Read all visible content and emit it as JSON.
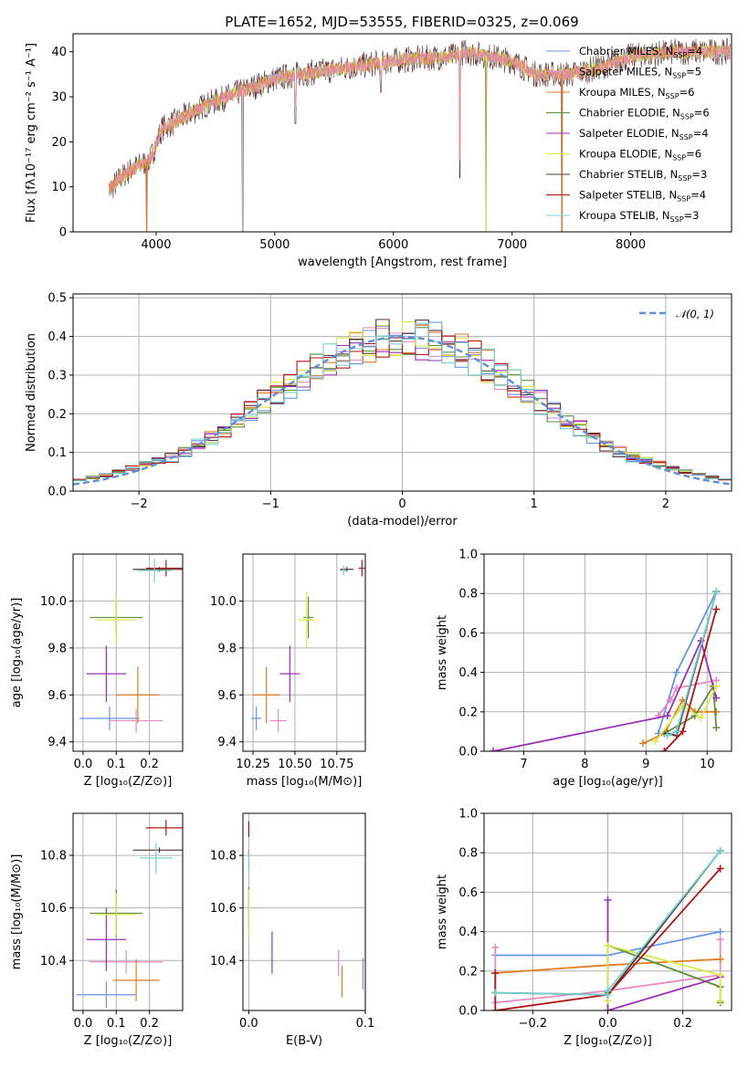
{
  "title": "PLATE=1652, MJD=53555, FIBERID=0325, z=0.069",
  "colors": {
    "chabrier_miles": "#6495ed",
    "salpeter_miles": "#e78ac3",
    "kroupa_miles": "#e07b1f",
    "chabrier_elodie": "#5f8f3c",
    "salpeter_elodie": "#9b30b4",
    "kroupa_elodie": "#d9e84a",
    "chabrier_stelib": "#5a3030",
    "salpeter_stelib": "#b01515",
    "kroupa_stelib": "#70d0d0",
    "normal": "#5b8fd8"
  },
  "chart_data": [
    {
      "id": "spectrum",
      "type": "line",
      "xlabel": "wavelength [Angstrom, rest frame]",
      "ylabel": "Flux [fλ10⁻¹⁷ erg cm⁻² s⁻¹ A⁻¹]",
      "xlim": [
        3300,
        8850
      ],
      "ylim": [
        0,
        44
      ],
      "xticks": [
        "4000",
        "5000",
        "6000",
        "7000",
        "8000"
      ],
      "yticks": [
        "0",
        "10",
        "20",
        "30",
        "40"
      ],
      "legend_position": "upper right",
      "legend": [
        {
          "name": "Chabrier MILES, N",
          "sub": "SSP",
          "eq": "=4",
          "color": "chabrier_miles"
        },
        {
          "name": "Salpeter MILES, N",
          "sub": "SSP",
          "eq": "=5",
          "color": "salpeter_miles"
        },
        {
          "name": "Kroupa MILES, N",
          "sub": "SSP",
          "eq": "=6",
          "color": "kroupa_miles"
        },
        {
          "name": "Chabrier ELODIE, N",
          "sub": "SSP",
          "eq": "=6",
          "color": "chabrier_elodie"
        },
        {
          "name": "Salpeter ELODIE, N",
          "sub": "SSP",
          "eq": "=4",
          "color": "salpeter_elodie"
        },
        {
          "name": "Kroupa ELODIE, N",
          "sub": "SSP",
          "eq": "=6",
          "color": "kroupa_elodie"
        },
        {
          "name": "Chabrier STELIB, N",
          "sub": "SSP",
          "eq": "=3",
          "color": "chabrier_stelib"
        },
        {
          "name": "Salpeter STELIB, N",
          "sub": "SSP",
          "eq": "=4",
          "color": "salpeter_stelib"
        },
        {
          "name": "Kroupa STELIB, N",
          "sub": "SSP",
          "eq": "=3",
          "color": "kroupa_stelib"
        }
      ],
      "continuum": [
        [
          3600,
          9
        ],
        [
          3700,
          12
        ],
        [
          3800,
          14
        ],
        [
          3950,
          16
        ],
        [
          4050,
          23
        ],
        [
          4200,
          25
        ],
        [
          4400,
          28
        ],
        [
          4600,
          30
        ],
        [
          4800,
          32
        ],
        [
          5000,
          34
        ],
        [
          5200,
          35
        ],
        [
          5500,
          36
        ],
        [
          6000,
          38
        ],
        [
          6500,
          39
        ],
        [
          6600,
          40
        ],
        [
          7000,
          38
        ],
        [
          7200,
          35
        ],
        [
          7500,
          35
        ],
        [
          7800,
          37
        ],
        [
          8000,
          39
        ],
        [
          8400,
          40
        ],
        [
          8800,
          40
        ]
      ],
      "dips": [
        [
          3920,
          0
        ],
        [
          4730,
          0
        ],
        [
          5175,
          24
        ],
        [
          5895,
          31
        ],
        [
          6560,
          12
        ],
        [
          6780,
          0
        ],
        [
          7420,
          0
        ]
      ]
    },
    {
      "id": "residuals",
      "type": "line",
      "xlabel": "(data-model)/error",
      "ylabel": "Normed distribution",
      "xlim": [
        -2.5,
        2.5
      ],
      "ylim": [
        0,
        0.51
      ],
      "xticks": [
        "−2",
        "−1",
        "0",
        "1",
        "2"
      ],
      "yticks": [
        "0.0",
        "0.1",
        "0.2",
        "0.3",
        "0.4",
        "0.5"
      ],
      "legend": {
        "name": "𝒩(0, 1)",
        "color": "normal"
      },
      "series_shape": "histograms of the nine fits, close to a standard normal curve"
    },
    {
      "id": "age_vs_Z",
      "type": "scatter",
      "xlabel": "Z [log₁₀(Z/Z⊙)]",
      "ylabel": "age  [log₁₀(age/yr)]",
      "xlim": [
        -0.03,
        0.3
      ],
      "ylim": [
        9.36,
        10.2
      ],
      "xticks": [
        "0.0",
        "0.1",
        "0.2"
      ],
      "yticks": [
        "9.4",
        "9.6",
        "9.8",
        "10.0"
      ],
      "points": [
        {
          "s": "chabrier_miles",
          "x": 0.08,
          "xe": 0.09,
          "y": 9.5,
          "ye": 0.05
        },
        {
          "s": "salpeter_miles",
          "x": 0.16,
          "xe": 0.08,
          "y": 9.49,
          "ye": 0.05
        },
        {
          "s": "kroupa_miles",
          "x": 0.165,
          "xe": 0.065,
          "y": 9.6,
          "ye": 0.12
        },
        {
          "s": "chabrier_elodie",
          "x": 0.1,
          "xe": 0.08,
          "y": 9.93,
          "ye": 0.07
        },
        {
          "s": "salpeter_elodie",
          "x": 0.07,
          "xe": 0.06,
          "y": 9.69,
          "ye": 0.12
        },
        {
          "s": "kroupa_elodie",
          "x": 0.1,
          "xe": 0.06,
          "y": 9.92,
          "ye": 0.1
        },
        {
          "s": "chabrier_stelib",
          "x": 0.23,
          "xe": 0.08,
          "y": 10.135,
          "ye": 0.01
        },
        {
          "s": "salpeter_stelib",
          "x": 0.25,
          "xe": 0.06,
          "y": 10.14,
          "ye": 0.035
        },
        {
          "s": "kroupa_stelib",
          "x": 0.215,
          "xe": 0.05,
          "y": 10.13,
          "ye": 0.05
        }
      ]
    },
    {
      "id": "age_vs_mass",
      "type": "scatter",
      "xlabel": "mass [log₁₀(M/M⊙)]",
      "ylabel": "",
      "xlim": [
        10.19,
        10.92
      ],
      "ylim": [
        9.36,
        10.2
      ],
      "xticks": [
        "10.25",
        "10.50",
        "10.75"
      ],
      "yticks": [
        "9.4",
        "9.6",
        "9.8",
        "10.0"
      ],
      "points": [
        {
          "s": "chabrier_miles",
          "x": 10.27,
          "xe": 0.03,
          "y": 9.5,
          "ye": 0.05
        },
        {
          "s": "salpeter_miles",
          "x": 10.4,
          "xe": 0.05,
          "y": 9.49,
          "ye": 0.05
        },
        {
          "s": "kroupa_miles",
          "x": 10.33,
          "xe": 0.08,
          "y": 9.6,
          "ye": 0.12
        },
        {
          "s": "chabrier_elodie",
          "x": 10.58,
          "xe": 0.03,
          "y": 9.93,
          "ye": 0.09
        },
        {
          "s": "salpeter_elodie",
          "x": 10.47,
          "xe": 0.06,
          "y": 9.69,
          "ye": 0.12
        },
        {
          "s": "kroupa_elodie",
          "x": 10.57,
          "xe": 0.05,
          "y": 9.92,
          "ye": 0.12
        },
        {
          "s": "chabrier_stelib",
          "x": 10.81,
          "xe": 0.04,
          "y": 10.135,
          "ye": 0.01
        },
        {
          "s": "salpeter_stelib",
          "x": 10.9,
          "xe": 0.02,
          "y": 10.14,
          "ye": 0.035
        },
        {
          "s": "kroupa_stelib",
          "x": 10.79,
          "xe": 0.02,
          "y": 10.13,
          "ye": 0.02
        }
      ]
    },
    {
      "id": "weight_vs_age",
      "type": "line",
      "xlabel": "age  [log₁₀(age/yr)]",
      "ylabel": "mass weight",
      "xlim": [
        6.35,
        10.4
      ],
      "ylim": [
        0,
        1.0
      ],
      "xticks": [
        "7",
        "8",
        "9",
        "10"
      ],
      "yticks": [
        "0.0",
        "0.2",
        "0.4",
        "0.6",
        "0.8",
        "1.0"
      ],
      "series": [
        {
          "s": "chabrier_miles",
          "x": [
            9.2,
            9.5,
            10.15
          ],
          "y": [
            0.09,
            0.4,
            0.81
          ]
        },
        {
          "s": "salpeter_miles",
          "x": [
            9.2,
            9.4,
            9.5,
            10.15
          ],
          "y": [
            0.18,
            0.26,
            0.32,
            0.36
          ]
        },
        {
          "s": "kroupa_miles",
          "x": [
            8.95,
            9.3,
            9.6,
            9.8,
            10.15
          ],
          "y": [
            0.04,
            0.09,
            0.26,
            0.2,
            0.2
          ]
        },
        {
          "s": "chabrier_elodie",
          "x": [
            9.3,
            9.8,
            10.1,
            10.15
          ],
          "y": [
            0.09,
            0.18,
            0.33,
            0.12
          ]
        },
        {
          "s": "salpeter_elodie",
          "x": [
            6.5,
            9.35,
            9.9,
            10.15
          ],
          "y": [
            0.0,
            0.18,
            0.56,
            0.27
          ]
        },
        {
          "s": "kroupa_elodie",
          "x": [
            9.15,
            9.6,
            9.9,
            10.15
          ],
          "y": [
            0.05,
            0.23,
            0.17,
            0.33
          ]
        },
        {
          "s": "chabrier_stelib",
          "x": [
            9.35,
            9.5,
            10.15
          ],
          "y": [
            0.09,
            0.08,
            0.81
          ]
        },
        {
          "s": "salpeter_stelib",
          "x": [
            9.3,
            9.6,
            10.15
          ],
          "y": [
            0.0,
            0.1,
            0.72
          ]
        },
        {
          "s": "kroupa_stelib",
          "x": [
            9.35,
            9.5,
            10.15
          ],
          "y": [
            0.08,
            0.1,
            0.81
          ]
        }
      ]
    },
    {
      "id": "mass_vs_Z",
      "type": "scatter",
      "xlabel": "Z [log₁₀(Z/Z⊙)]",
      "ylabel": "mass [log₁₀(M/M⊙)]",
      "xlim": [
        -0.03,
        0.3
      ],
      "ylim": [
        10.21,
        10.96
      ],
      "xticks": [
        "0.0",
        "0.1",
        "0.2"
      ],
      "yticks": [
        "10.4",
        "10.6",
        "10.8"
      ],
      "points": [
        {
          "s": "chabrier_miles",
          "x": 0.07,
          "xe": 0.09,
          "y": 10.27,
          "ye": 0.05
        },
        {
          "s": "salpeter_miles",
          "x": 0.13,
          "xe": 0.11,
          "y": 10.395,
          "ye": 0.045
        },
        {
          "s": "kroupa_miles",
          "x": 0.16,
          "xe": 0.07,
          "y": 10.325,
          "ye": 0.08
        },
        {
          "s": "chabrier_elodie",
          "x": 0.1,
          "xe": 0.08,
          "y": 10.58,
          "ye": 0.09
        },
        {
          "s": "salpeter_elodie",
          "x": 0.07,
          "xe": 0.06,
          "y": 10.48,
          "ye": 0.12
        },
        {
          "s": "kroupa_elodie",
          "x": 0.1,
          "xe": 0.06,
          "y": 10.575,
          "ye": 0.08
        },
        {
          "s": "chabrier_stelib",
          "x": 0.23,
          "xe": 0.08,
          "y": 10.82,
          "ye": 0.01
        },
        {
          "s": "salpeter_stelib",
          "x": 0.25,
          "xe": 0.06,
          "y": 10.905,
          "ye": 0.03
        },
        {
          "s": "kroupa_stelib",
          "x": 0.22,
          "xe": 0.05,
          "y": 10.79,
          "ye": 0.06
        }
      ]
    },
    {
      "id": "mass_vs_ebv",
      "type": "scatter",
      "xlabel": "E(B-V)",
      "ylabel": "",
      "xlim": [
        -0.005,
        0.1
      ],
      "ylim": [
        10.21,
        10.96
      ],
      "xticks": [
        "0.0",
        "0.1"
      ],
      "yticks": [
        "10.4",
        "10.6",
        "10.8"
      ],
      "points": [
        {
          "s": "chabrier_miles",
          "x": 0.098,
          "y": 10.35,
          "ye": 0.06
        },
        {
          "s": "salpeter_miles",
          "x": 0.077,
          "y": 10.39,
          "ye": 0.05
        },
        {
          "s": "kroupa_miles",
          "x": 0.08,
          "y": 10.32,
          "ye": 0.06
        },
        {
          "s": "chabrier_elodie",
          "x": 0.0,
          "y": 10.6,
          "ye": 0.08
        },
        {
          "s": "salpeter_elodie",
          "x": 0.02,
          "y": 10.43,
          "ye": 0.08
        },
        {
          "s": "kroupa_elodie",
          "x": 0.0,
          "y": 10.58,
          "ye": 0.09
        },
        {
          "s": "chabrier_stelib",
          "x": 0.0,
          "y": 10.81,
          "ye": 0.01
        },
        {
          "s": "salpeter_stelib",
          "x": 0.0,
          "y": 10.9,
          "ye": 0.03
        },
        {
          "s": "kroupa_stelib",
          "x": 0.0,
          "y": 10.78,
          "ye": 0.04
        }
      ]
    },
    {
      "id": "weight_vs_Z",
      "type": "line",
      "xlabel": "Z [log₁₀(Z/Z⊙)]",
      "ylabel": "mass weight",
      "xlim": [
        -0.33,
        0.33
      ],
      "ylim": [
        0,
        1.0
      ],
      "xticks": [
        "−0.2",
        "0.0",
        "0.2"
      ],
      "yticks": [
        "0.0",
        "0.2",
        "0.4",
        "0.6",
        "0.8",
        "1.0"
      ],
      "series": [
        {
          "s": "chabrier_miles",
          "x": [
            -0.3,
            0.0,
            0.3
          ],
          "y": [
            0.28,
            0.28,
            0.4
          ]
        },
        {
          "s": "salpeter_miles",
          "x": [
            -0.3,
            -0.3,
            0.0,
            0.3,
            0.3
          ],
          "y": [
            0.32,
            0.04,
            0.1,
            0.18,
            0.36
          ]
        },
        {
          "s": "kroupa_miles",
          "x": [
            -0.3,
            0.0,
            0.3
          ],
          "y": [
            0.19,
            0.23,
            0.26
          ]
        },
        {
          "s": "chabrier_elodie",
          "x": [
            0.0,
            0.0,
            0.3,
            0.3
          ],
          "y": [
            0.09,
            0.33,
            0.12,
            0.04
          ]
        },
        {
          "s": "salpeter_elodie",
          "x": [
            0.0,
            0.0,
            0.3
          ],
          "y": [
            0.56,
            0.0,
            0.17
          ]
        },
        {
          "s": "kroupa_elodie",
          "x": [
            0.0,
            0.0,
            0.3,
            0.3
          ],
          "y": [
            0.05,
            0.33,
            0.18,
            0.05
          ]
        },
        {
          "s": "chabrier_stelib",
          "x": [
            -0.3,
            0.0,
            0.3
          ],
          "y": [
            0.09,
            0.08,
            0.81
          ]
        },
        {
          "s": "salpeter_stelib",
          "x": [
            -0.3,
            -0.3,
            0.0,
            0.3
          ],
          "y": [
            0.19,
            0.0,
            0.08,
            0.72
          ]
        },
        {
          "s": "kroupa_stelib",
          "x": [
            -0.3,
            0.0,
            0.0,
            0.3
          ],
          "y": [
            0.09,
            0.08,
            0.1,
            0.81
          ]
        }
      ]
    }
  ]
}
